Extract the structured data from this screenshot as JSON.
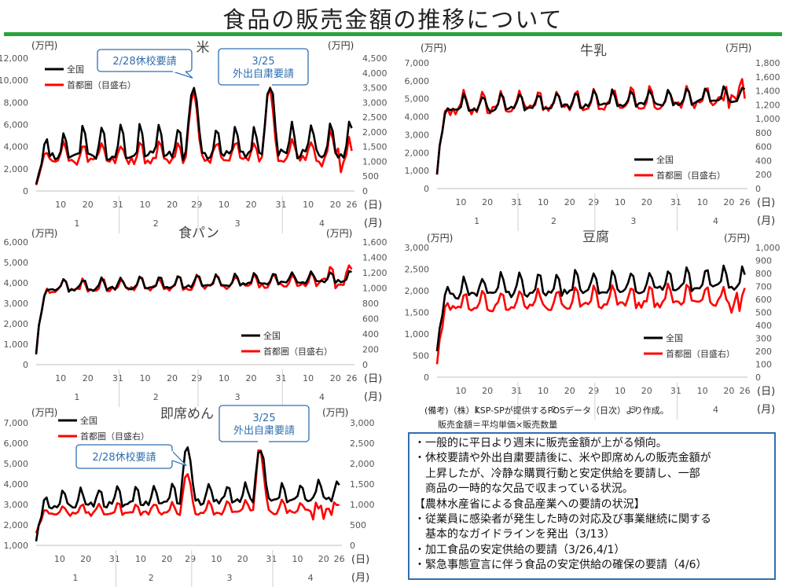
{
  "page": {
    "title": "食品の販売金額の推移について",
    "note_source": "(備考)（株）KSP-SPが提供するPOSデータ（日次）より作成。",
    "note_formula": "販売金額＝平均単価×販売数量",
    "summary_lines": [
      "・一般的に平日より週末に販売金額が上がる傾向。",
      "・休校要請や外出自粛要請後に、米や即席めんの販売金額が",
      "　上昇したが、冷静な購買行動と安定供給を要請し、一部",
      "　商品の一時的な欠品で収まっている状況。",
      "【農林水産省による食品産業への要請の状況】",
      "・従業員に感染者が発生した時の対応及び事業継続に関する",
      "　基本的なガイドラインを発出（3/13）",
      "・加工食品の安定供給の要請（3/26,4/1）",
      "・緊急事態宣言に伴う食品の安定供給の確保の要請（4/6）"
    ]
  },
  "colors": {
    "nationwide": "#000000",
    "capital": "#ff0000",
    "accent_green": "#2aa23c",
    "callout_border": "#2f6fb0",
    "callout_fill": "#ffffff",
    "callout_text": "#2f6fb0"
  },
  "chart_data": [
    {
      "id": "rice",
      "type": "line",
      "title": "米",
      "left_unit": "(万円)",
      "right_unit": "(万円)",
      "x_unit_day": "(日)",
      "x_unit_month": "(月)",
      "x_range": [
        0,
        117
      ],
      "x_tick_labels": [
        {
          "x": 9,
          "label": "10"
        },
        {
          "x": 19,
          "label": "20"
        },
        {
          "x": 30,
          "label": "31"
        },
        {
          "x": 40,
          "label": "10"
        },
        {
          "x": 50,
          "label": "20"
        },
        {
          "x": 59,
          "label": "29"
        },
        {
          "x": 69,
          "label": "10"
        },
        {
          "x": 79,
          "label": "20"
        },
        {
          "x": 90,
          "label": "31"
        },
        {
          "x": 100,
          "label": "10"
        },
        {
          "x": 110,
          "label": "20"
        },
        {
          "x": 116,
          "label": "26"
        }
      ],
      "month_labels": [
        {
          "x": 15,
          "label": "1"
        },
        {
          "x": 44,
          "label": "2"
        },
        {
          "x": 74,
          "label": "3"
        },
        {
          "x": 105,
          "label": "4"
        }
      ],
      "month_dividers": [
        30.5,
        59.5,
        90.5
      ],
      "y_left": {
        "min": 0,
        "max": 12000,
        "ticks": [
          "0",
          "2,000",
          "4,000",
          "6,000",
          "8,000",
          "10,000",
          "12,000"
        ]
      },
      "y_right": {
        "min": 0,
        "max": 4500,
        "ticks": [
          "0",
          "500",
          "1,000",
          "1,500",
          "2,000",
          "2,500",
          "3,000",
          "3,500",
          "4,000",
          "4,500"
        ]
      },
      "legend": {
        "position": "top-left",
        "items": [
          "全国",
          "首都圏（目盛右）"
        ]
      },
      "base": {
        "nat_start": 600,
        "nat_level": 3000,
        "nat_weekend": 2500,
        "cap_start": 200,
        "cap_level": 1000,
        "cap_weekend": 600
      },
      "events": [
        {
          "x": 57.5,
          "left": 6000,
          "right": 2200
        },
        {
          "x": 85.5,
          "left": 5500,
          "right": 2400
        }
      ],
      "callouts": [
        {
          "lines": [
            "2/28休校要請"
          ],
          "x": 57.5,
          "y_left": 10200,
          "pos": "top-center"
        },
        {
          "lines": [
            "3/25",
            "外出自粛要請"
          ],
          "x": 85.5,
          "y_left": 10300,
          "pos": "top-right-mid"
        }
      ]
    },
    {
      "id": "milk",
      "type": "line",
      "title": "牛乳",
      "left_unit": "(万円)",
      "right_unit": "(万円)",
      "x_unit_day": "(日)",
      "x_unit_month": "(月)",
      "x_range": [
        0,
        117
      ],
      "x_tick_labels": [
        {
          "x": 9,
          "label": "10"
        },
        {
          "x": 19,
          "label": "20"
        },
        {
          "x": 30,
          "label": "31"
        },
        {
          "x": 40,
          "label": "10"
        },
        {
          "x": 50,
          "label": "20"
        },
        {
          "x": 59,
          "label": "29"
        },
        {
          "x": 69,
          "label": "10"
        },
        {
          "x": 79,
          "label": "20"
        },
        {
          "x": 90,
          "label": "31"
        },
        {
          "x": 100,
          "label": "10"
        },
        {
          "x": 110,
          "label": "20"
        },
        {
          "x": 116,
          "label": "26"
        }
      ],
      "month_labels": [
        {
          "x": 15,
          "label": "1"
        },
        {
          "x": 44,
          "label": "2"
        },
        {
          "x": 74,
          "label": "3"
        },
        {
          "x": 105,
          "label": "4"
        }
      ],
      "month_dividers": [
        30.5,
        59.5,
        90.5
      ],
      "y_left": {
        "min": 0,
        "max": 7000,
        "ticks": [
          "0",
          "1,000",
          "2,000",
          "3,000",
          "4,000",
          "5,000",
          "6,000",
          "7,000"
        ]
      },
      "y_right": {
        "min": 0,
        "max": 1800,
        "ticks": [
          "0",
          "200",
          "400",
          "600",
          "800",
          "1,000",
          "1,200",
          "1,400",
          "1,600",
          "1,800"
        ]
      },
      "legend": {
        "position": "bottom-right",
        "items": [
          "全国",
          "首都圏（目盛右）"
        ]
      },
      "base": {
        "nat_start": 800,
        "nat_level": 4300,
        "nat_weekend": 800,
        "cap_start": 200,
        "cap_level": 1100,
        "cap_weekend": 250
      },
      "events": [],
      "callouts": []
    },
    {
      "id": "bread",
      "type": "line",
      "title": "食パン",
      "left_unit": "(万円)",
      "right_unit": "(万円)",
      "x_unit_day": "(日)",
      "x_unit_month": "(月)",
      "x_range": [
        0,
        117
      ],
      "x_tick_labels": [
        {
          "x": 9,
          "label": "10"
        },
        {
          "x": 19,
          "label": "20"
        },
        {
          "x": 30,
          "label": "31"
        },
        {
          "x": 40,
          "label": "10"
        },
        {
          "x": 50,
          "label": "20"
        },
        {
          "x": 59,
          "label": "29"
        },
        {
          "x": 69,
          "label": "10"
        },
        {
          "x": 79,
          "label": "20"
        },
        {
          "x": 90,
          "label": "31"
        },
        {
          "x": 100,
          "label": "10"
        },
        {
          "x": 110,
          "label": "20"
        },
        {
          "x": 116,
          "label": "26"
        }
      ],
      "month_labels": [
        {
          "x": 15,
          "label": "1"
        },
        {
          "x": 44,
          "label": "2"
        },
        {
          "x": 74,
          "label": "3"
        },
        {
          "x": 105,
          "label": "4"
        }
      ],
      "month_dividers": [
        30.5,
        59.5,
        90.5
      ],
      "y_left": {
        "min": 0,
        "max": 6000,
        "ticks": [
          "0",
          "1,000",
          "2,000",
          "3,000",
          "4,000",
          "5,000",
          "6,000"
        ]
      },
      "y_right": {
        "min": 0,
        "max": 1600,
        "ticks": [
          "0",
          "200",
          "400",
          "600",
          "800",
          "1,000",
          "1,200",
          "1,400",
          "1,600"
        ]
      },
      "legend": {
        "position": "bottom-right",
        "items": [
          "全国",
          "首都圏（目盛右）"
        ]
      },
      "base": {
        "nat_start": 500,
        "nat_level": 3600,
        "nat_weekend": 500,
        "cap_start": 150,
        "cap_level": 950,
        "cap_weekend": 150
      },
      "events": [],
      "callouts": []
    },
    {
      "id": "tofu",
      "type": "line",
      "title": "豆腐",
      "left_unit": "(万円)",
      "right_unit": "(万円)",
      "x_unit_day": "(日)",
      "x_unit_month": "(月)",
      "x_range": [
        0,
        117
      ],
      "x_tick_labels": [
        {
          "x": 9,
          "label": "10"
        },
        {
          "x": 19,
          "label": "20"
        },
        {
          "x": 30,
          "label": "31"
        },
        {
          "x": 40,
          "label": "10"
        },
        {
          "x": 50,
          "label": "20"
        },
        {
          "x": 59,
          "label": "29"
        },
        {
          "x": 69,
          "label": "10"
        },
        {
          "x": 79,
          "label": "20"
        },
        {
          "x": 90,
          "label": "31"
        },
        {
          "x": 100,
          "label": "10"
        },
        {
          "x": 110,
          "label": "20"
        },
        {
          "x": 116,
          "label": "26"
        }
      ],
      "month_labels": [
        {
          "x": 15,
          "label": "1"
        },
        {
          "x": 44,
          "label": "2"
        },
        {
          "x": 74,
          "label": "3"
        },
        {
          "x": 105,
          "label": "4"
        }
      ],
      "month_dividers": [
        30.5,
        59.5,
        90.5
      ],
      "y_left": {
        "min": 0,
        "max": 3000,
        "ticks": [
          "0",
          "500",
          "1,000",
          "1,500",
          "2,000",
          "2,500",
          "3,000"
        ]
      },
      "y_right": {
        "min": 0,
        "max": 1000,
        "ticks": [
          "0",
          "100",
          "200",
          "300",
          "400",
          "500",
          "600",
          "700",
          "800",
          "900",
          "1,000"
        ]
      },
      "legend": {
        "position": "bottom-right",
        "items": [
          "全国",
          "首都圏（目盛右）"
        ]
      },
      "base": {
        "nat_start": 600,
        "nat_level": 1850,
        "nat_weekend": 450,
        "cap_start": 100,
        "cap_level": 520,
        "cap_weekend": 130
      },
      "events": [],
      "callouts": []
    },
    {
      "id": "instant_noodles",
      "type": "line",
      "title": "即席めん",
      "left_unit": "(万円)",
      "right_unit": "(万円)",
      "x_unit_day": "(日)",
      "x_unit_month": "(月)",
      "x_range": [
        0,
        117
      ],
      "x_tick_labels": [
        {
          "x": 9,
          "label": "10"
        },
        {
          "x": 19,
          "label": "20"
        },
        {
          "x": 30,
          "label": "31"
        },
        {
          "x": 40,
          "label": "10"
        },
        {
          "x": 50,
          "label": "20"
        },
        {
          "x": 59,
          "label": "29"
        },
        {
          "x": 69,
          "label": "10"
        },
        {
          "x": 79,
          "label": "20"
        },
        {
          "x": 90,
          "label": "31"
        },
        {
          "x": 100,
          "label": "10"
        },
        {
          "x": 110,
          "label": "20"
        },
        {
          "x": 116,
          "label": "26"
        }
      ],
      "month_labels": [
        {
          "x": 15,
          "label": "1"
        },
        {
          "x": 44,
          "label": "2"
        },
        {
          "x": 74,
          "label": "3"
        },
        {
          "x": 105,
          "label": "4"
        }
      ],
      "month_dividers": [
        30.5,
        59.5,
        90.5
      ],
      "y_left": {
        "min": 1000,
        "max": 7000,
        "ticks": [
          "1,000",
          "2,000",
          "3,000",
          "4,000",
          "5,000",
          "6,000",
          "7,000"
        ]
      },
      "y_right": {
        "min": 0,
        "max": 3000,
        "ticks": [
          "0",
          "500",
          "1,000",
          "1,500",
          "2,000",
          "2,500",
          "3,000"
        ]
      },
      "legend": {
        "position": "top-left",
        "items": [
          "全国",
          "首都圏（目盛右）"
        ]
      },
      "base": {
        "nat_start": 1200,
        "nat_level": 2900,
        "nat_weekend": 800,
        "cap_start": 300,
        "cap_level": 750,
        "cap_weekend": 250
      },
      "events": [
        {
          "x": 57.5,
          "left": 2800,
          "right": 1000
        },
        {
          "x": 85.5,
          "left": 2500,
          "right": 1600
        }
      ],
      "callouts": [
        {
          "lines": [
            "3/25",
            "外出自粛要請"
          ],
          "x": 85.5,
          "y_left": 6400,
          "pos": "top-right"
        },
        {
          "lines": [
            "2/28休校要請"
          ],
          "x": 57.5,
          "y_left": 4900,
          "pos": "left-mid"
        }
      ]
    }
  ]
}
